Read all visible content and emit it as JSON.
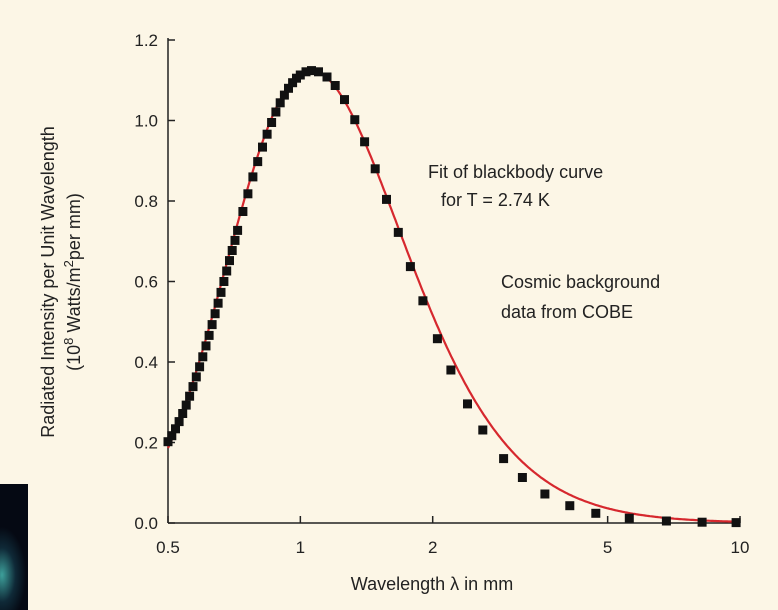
{
  "chart_data": {
    "type": "scatter",
    "xlabel": "Wavelength λ in mm",
    "ylabel_line1": "Radiated Intensity per Unit Wavelength",
    "ylabel_line2_parts": [
      "(10",
      "8",
      " Watts/m",
      "2",
      "per mm)"
    ],
    "x_scale": "log",
    "xlim": [
      0.5,
      10
    ],
    "ylim": [
      0,
      1.2
    ],
    "x_ticks": [
      0.5,
      1,
      2,
      5,
      10
    ],
    "x_tick_labels": [
      "0.5",
      "1",
      "2",
      "5",
      "10"
    ],
    "y_ticks": [
      0,
      0.2,
      0.4,
      0.6,
      0.8,
      1.0,
      1.2
    ],
    "y_tick_labels": [
      "0.0",
      "0.2",
      "0.4",
      "0.6",
      "0.8",
      "1.0",
      "1.2"
    ],
    "fit_temperature_K": 2.74,
    "fit_color": "#d6282e",
    "marker_color": "#111111",
    "series": [
      {
        "name": "Cosmic background data from COBE",
        "x": [
          0.5,
          0.51,
          0.52,
          0.53,
          0.54,
          0.55,
          0.56,
          0.57,
          0.58,
          0.59,
          0.6,
          0.61,
          0.62,
          0.63,
          0.64,
          0.65,
          0.66,
          0.67,
          0.68,
          0.69,
          0.7,
          0.71,
          0.72,
          0.74,
          0.76,
          0.78,
          0.8,
          0.82,
          0.84,
          0.86,
          0.88,
          0.9,
          0.92,
          0.94,
          0.96,
          0.98,
          1.0,
          1.03,
          1.06,
          1.1,
          1.15,
          1.2,
          1.26,
          1.33,
          1.4,
          1.48,
          1.57,
          1.67,
          1.78,
          1.9,
          2.05,
          2.2,
          2.4,
          2.6,
          2.9,
          3.2,
          3.6,
          4.1,
          4.7,
          5.6,
          6.8,
          8.2,
          9.8
        ],
        "y": [
          0.202,
          0.217,
          0.234,
          0.252,
          0.272,
          0.293,
          0.315,
          0.339,
          0.363,
          0.388,
          0.413,
          0.44,
          0.466,
          0.493,
          0.52,
          0.546,
          0.573,
          0.6,
          0.626,
          0.652,
          0.677,
          0.702,
          0.727,
          0.774,
          0.818,
          0.86,
          0.898,
          0.934,
          0.966,
          0.995,
          1.021,
          1.044,
          1.063,
          1.08,
          1.094,
          1.105,
          1.113,
          1.121,
          1.124,
          1.121,
          1.108,
          1.087,
          1.052,
          1.002,
          0.947,
          0.88,
          0.804,
          0.722,
          0.637,
          0.552,
          0.458,
          0.38,
          0.296,
          0.231,
          0.16,
          0.113,
          0.072,
          0.043,
          0.024,
          0.012,
          0.005,
          0.002,
          0.001
        ]
      }
    ],
    "annotations": [
      {
        "id": "fit",
        "lines": [
          "Fit of blackbody curve",
          "for T = 2.74 K"
        ]
      },
      {
        "id": "data",
        "lines": [
          "Cosmic background",
          "data from COBE"
        ]
      }
    ]
  }
}
